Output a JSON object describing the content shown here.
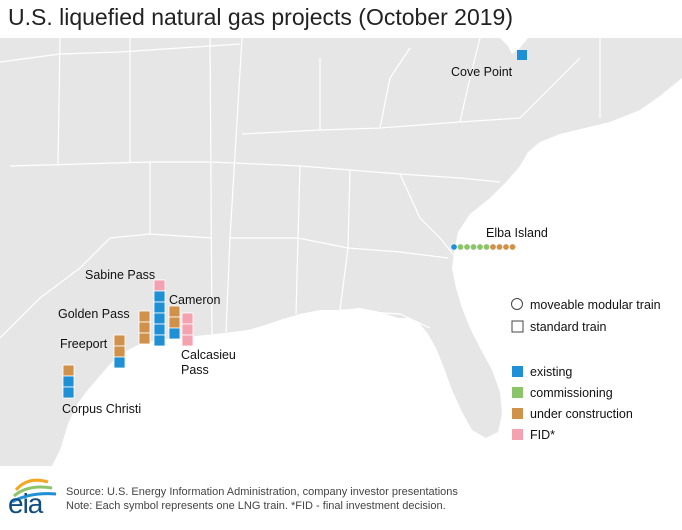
{
  "title": "U.S. liquefied natural gas projects (October 2019)",
  "colors": {
    "existing": "#1f90d6",
    "commissioning": "#8cc46a",
    "under_construction": "#d0924a",
    "fid": "#f4a1b0",
    "land": "#e6e6e6",
    "state_border": "#ffffff",
    "water": "#ffffff"
  },
  "projects": [
    {
      "name": "Cove Point",
      "trains": [
        "existing"
      ],
      "type": "standard"
    },
    {
      "name": "Elba Island",
      "trains": [
        "existing",
        "commissioning",
        "commissioning",
        "commissioning",
        "commissioning",
        "commissioning",
        "under_construction",
        "under_construction",
        "under_construction",
        "under_construction"
      ],
      "type": "modular"
    },
    {
      "name": "Sabine Pass",
      "trains": [
        "fid",
        "existing",
        "existing",
        "existing",
        "existing",
        "existing"
      ],
      "type": "standard"
    },
    {
      "name": "Cameron",
      "trains": [
        "under_construction",
        "under_construction",
        "existing"
      ],
      "type": "standard"
    },
    {
      "name": "Golden Pass",
      "trains": [
        "under_construction",
        "under_construction",
        "under_construction"
      ],
      "type": "standard"
    },
    {
      "name": "Calcasieu Pass",
      "trains": [
        "fid",
        "fid",
        "fid"
      ],
      "type": "standard"
    },
    {
      "name": "Freeport",
      "trains": [
        "under_construction",
        "under_construction",
        "existing"
      ],
      "type": "standard"
    },
    {
      "name": "Corpus Christi",
      "trains": [
        "under_construction",
        "existing",
        "existing"
      ],
      "type": "standard"
    }
  ],
  "labels": {
    "cove_point": "Cove Point",
    "elba_island": "Elba Island",
    "sabine_pass": "Sabine Pass",
    "cameron": "Cameron",
    "golden_pass": "Golden Pass",
    "calcasieu_line1": "Calcasieu",
    "calcasieu_line2": "Pass",
    "freeport": "Freeport",
    "corpus_christi": "Corpus Christi"
  },
  "legend": {
    "modular": "moveable modular train",
    "standard": "standard train",
    "existing": "existing",
    "commissioning": "commissioning",
    "under_construction": "under construction",
    "fid": "FID*"
  },
  "logo_text": "eia",
  "source": "Source: U.S. Energy Information Administration, company investor presentations",
  "note": "Note: Each symbol represents one LNG train. *FID - final investment decision."
}
